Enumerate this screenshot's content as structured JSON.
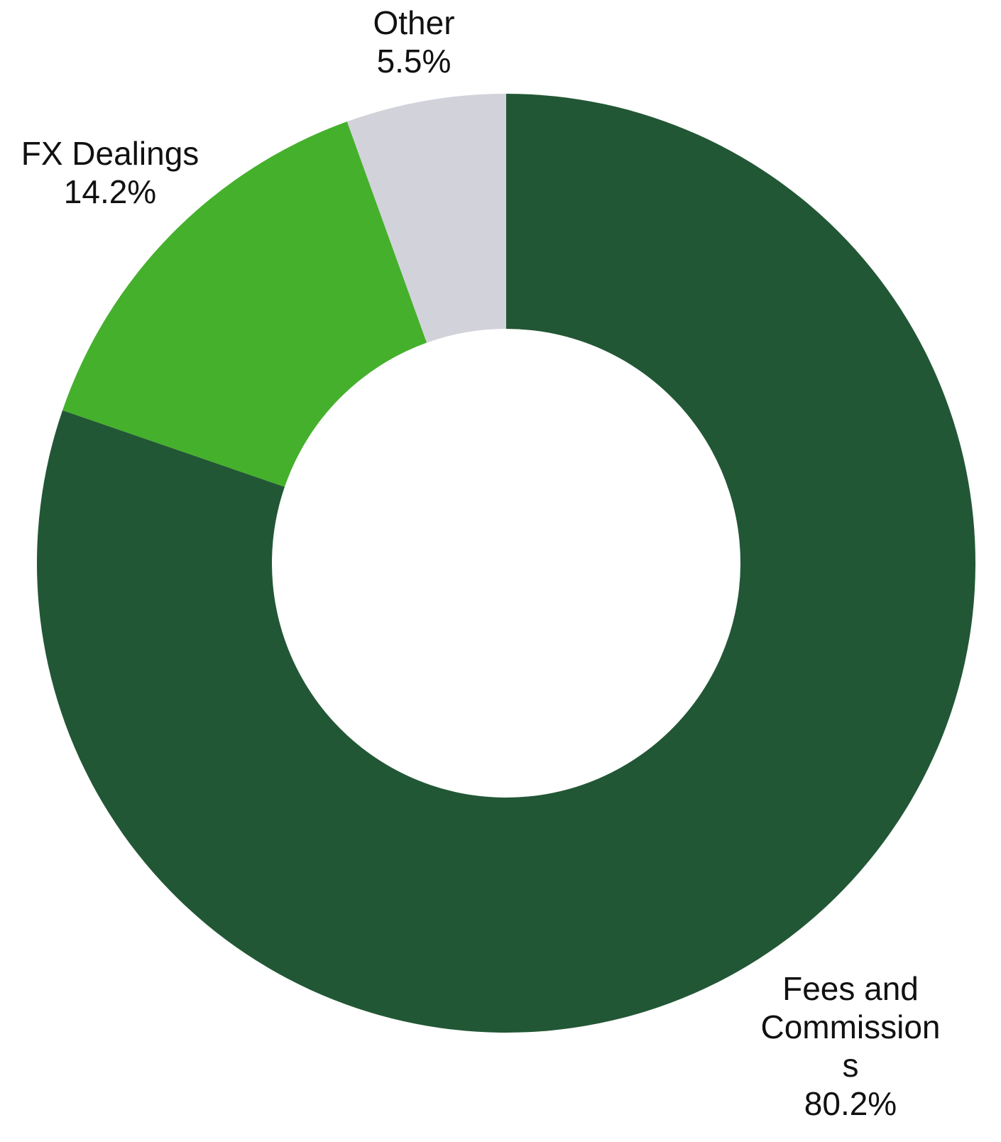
{
  "chart_data": {
    "type": "pie",
    "variant": "donut",
    "title": "",
    "slices": [
      {
        "label_lines": [
          "Fees and",
          "Commission",
          "s"
        ],
        "value": 80.2,
        "value_text": "80.2%",
        "color": "#225735"
      },
      {
        "label_lines": [
          "FX Dealings"
        ],
        "value": 14.2,
        "value_text": "14.2%",
        "color": "#45b02c"
      },
      {
        "label_lines": [
          "Other"
        ],
        "value": 5.5,
        "value_text": "5.5%",
        "color": "#d2d2da"
      }
    ],
    "start": "12 o'clock",
    "direction": "clockwise"
  }
}
